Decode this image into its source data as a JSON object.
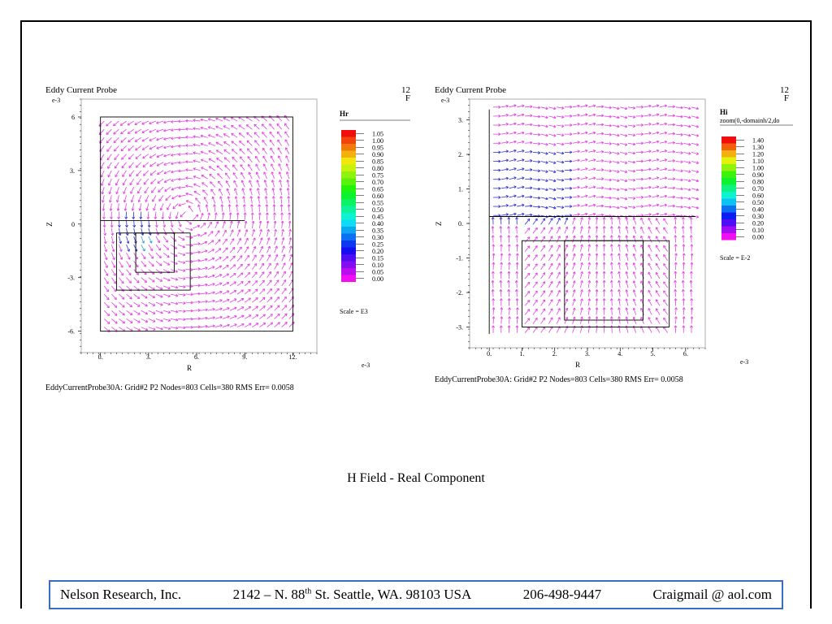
{
  "slide": {
    "caption": "H Field - Real Component",
    "footer": {
      "company": "Nelson Research, Inc.",
      "address_pre": "2142 –  N. 88",
      "address_sup": "th",
      "address_post": " St. Seattle, WA. 98103   USA",
      "phone": "206-498-9447",
      "email": "Craigmail @ aol.com"
    }
  },
  "colors": {
    "arrow": "#e040e0",
    "arrow_low": "#3030d0",
    "arrow_mid": "#30a0c0",
    "footer_border": "#3b6cc4"
  },
  "chart_data": [
    {
      "type": "vector_field",
      "title": "Eddy Current Probe",
      "corner_number": "12",
      "corner_letter": "F",
      "exponent_y": "e-3",
      "exponent_x": "e-3",
      "xlabel": "R",
      "ylabel": "Z",
      "xticks": [
        "0.",
        "3.",
        "6.",
        "9.",
        "12."
      ],
      "yticks": [
        "6",
        "3.",
        "0",
        "-3.",
        "-6."
      ],
      "xlim": [
        -1.2,
        13.5
      ],
      "ylim": [
        -7.2,
        7.0
      ],
      "grid": false,
      "legend_title": "Hr",
      "legend_subtitle": "",
      "legend_values": [
        "1.05",
        "1.00",
        "0.95",
        "0.90",
        "0.85",
        "0.80",
        "0.75",
        "0.70",
        "0.65",
        "0.60",
        "0.55",
        "0.50",
        "0.45",
        "0.40",
        "0.35",
        "0.30",
        "0.25",
        "0.20",
        "0.15",
        "0.10",
        "0.05",
        "0.00"
      ],
      "scale_note": "Scale = E3",
      "footer": "EddyCurrentProbe30A:  Grid#2  P2  Nodes=803 Cells=380 RMS Err= 0.0058",
      "field": {
        "x_range": [
          0,
          12
        ],
        "y_range": [
          -6,
          6
        ],
        "grid": [
          26,
          26
        ],
        "pattern": "vortex",
        "center": [
          5.5,
          0.5
        ]
      },
      "geometry": [
        {
          "kind": "rect",
          "x": [
            0,
            12
          ],
          "y": [
            -6,
            6
          ]
        },
        {
          "kind": "line",
          "x": [
            0,
            9
          ],
          "y": [
            0.2,
            0.2
          ]
        },
        {
          "kind": "rect",
          "x": [
            1,
            5.6
          ],
          "y": [
            -3.7,
            -0.5
          ]
        },
        {
          "kind": "rect",
          "x": [
            2.2,
            4.6
          ],
          "y": [
            -2.7,
            -0.5
          ]
        }
      ]
    },
    {
      "type": "vector_field",
      "title": "Eddy Current Probe",
      "corner_number": "12",
      "corner_letter": "F",
      "exponent_y": "e-3",
      "exponent_x": "e-3",
      "xlabel": "R",
      "ylabel": "Z",
      "xticks": [
        "0.",
        "1.",
        "2.",
        "3.",
        "4.",
        "5.",
        "6."
      ],
      "yticks": [
        "3.",
        "2.",
        "1.",
        "0.",
        "-1.",
        "-2.",
        "-3."
      ],
      "xlim": [
        -0.6,
        6.6
      ],
      "ylim": [
        -3.6,
        3.6
      ],
      "grid": false,
      "legend_title": "Hi",
      "legend_subtitle": "zoom(0,-domainh/2,do",
      "legend_values": [
        "1.40",
        "1.30",
        "1.20",
        "1.10",
        "1.00",
        "0.90",
        "0.80",
        "0.70",
        "0.60",
        "0.50",
        "0.40",
        "0.30",
        "0.20",
        "0.10",
        "0.00"
      ],
      "scale_note": "Scale = E-2",
      "footer": "EddyCurrentProbe30A:  Grid#2  P2  Nodes=803 Cells=380 RMS Err= 0.0058",
      "field": {
        "x_range": [
          0,
          6.3
        ],
        "y_range": [
          -3.3,
          3.5
        ],
        "grid": [
          26,
          26
        ],
        "pattern": "stream",
        "center": [
          3.5,
          -1.5
        ]
      },
      "geometry": [
        {
          "kind": "line",
          "x": [
            0,
            0
          ],
          "y": [
            -3.2,
            3.3
          ]
        },
        {
          "kind": "line",
          "x": [
            0,
            6.3
          ],
          "y": [
            0.2,
            0.2
          ]
        },
        {
          "kind": "rect",
          "x": [
            1,
            5.5
          ],
          "y": [
            -3.0,
            -0.5
          ]
        },
        {
          "kind": "rect",
          "x": [
            2.3,
            4.7
          ],
          "y": [
            -2.8,
            -0.5
          ]
        }
      ]
    }
  ]
}
